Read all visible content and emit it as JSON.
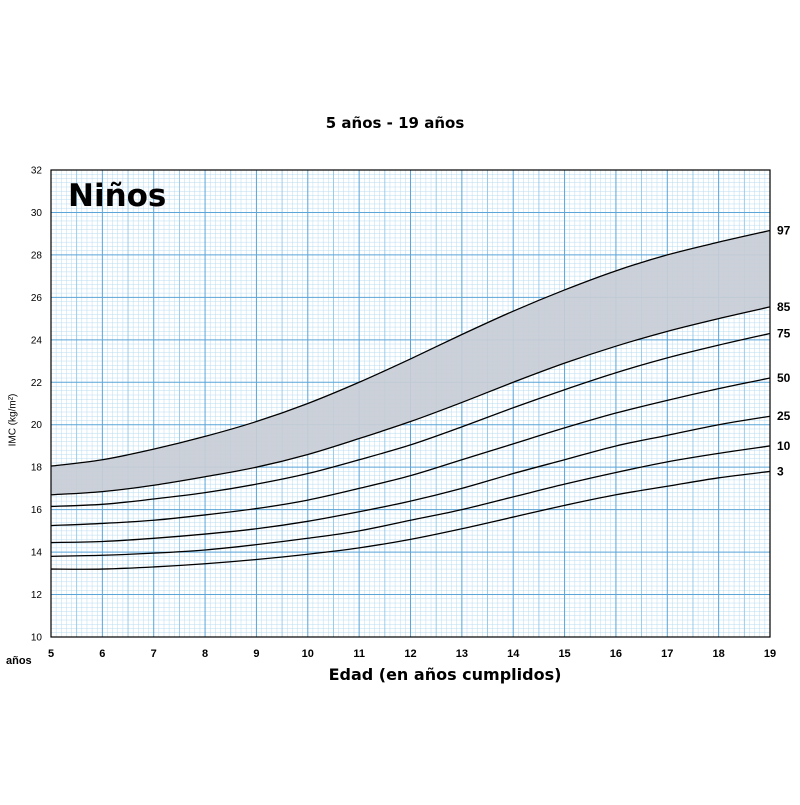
{
  "chart_data": {
    "type": "line",
    "title": "5 años - 19 años",
    "panel_label": "Niños",
    "xlabel": "Edad (en años cumplidos)",
    "ylabel": "IMC (kg/m²)",
    "x_unit_label": "años",
    "xlim": [
      5,
      19
    ],
    "ylim": [
      10,
      32
    ],
    "x_ticks": [
      5,
      6,
      7,
      8,
      9,
      10,
      11,
      12,
      13,
      14,
      15,
      16,
      17,
      18,
      19
    ],
    "y_ticks": [
      10,
      12,
      14,
      16,
      18,
      20,
      22,
      24,
      26,
      28,
      30,
      32
    ],
    "grid": true,
    "shaded_band": {
      "from_series": "85",
      "to_series": "97",
      "color": "#c8cdd6"
    },
    "series": [
      {
        "name": "3",
        "x": [
          5,
          6,
          7,
          8,
          9,
          10,
          11,
          12,
          13,
          14,
          15,
          16,
          17,
          18,
          19
        ],
        "values": [
          13.2,
          13.2,
          13.3,
          13.45,
          13.65,
          13.9,
          14.2,
          14.6,
          15.1,
          15.65,
          16.2,
          16.7,
          17.1,
          17.5,
          17.8
        ]
      },
      {
        "name": "10",
        "x": [
          5,
          6,
          7,
          8,
          9,
          10,
          11,
          12,
          13,
          14,
          15,
          16,
          17,
          18,
          19
        ],
        "values": [
          13.8,
          13.85,
          13.95,
          14.1,
          14.35,
          14.65,
          15.0,
          15.5,
          16.0,
          16.6,
          17.2,
          17.75,
          18.25,
          18.65,
          19.0
        ]
      },
      {
        "name": "25",
        "x": [
          5,
          6,
          7,
          8,
          9,
          10,
          11,
          12,
          13,
          14,
          15,
          16,
          17,
          18,
          19
        ],
        "values": [
          14.45,
          14.5,
          14.65,
          14.85,
          15.1,
          15.45,
          15.9,
          16.4,
          17.0,
          17.7,
          18.35,
          19.0,
          19.5,
          20.0,
          20.4
        ]
      },
      {
        "name": "50",
        "x": [
          5,
          6,
          7,
          8,
          9,
          10,
          11,
          12,
          13,
          14,
          15,
          16,
          17,
          18,
          19
        ],
        "values": [
          15.25,
          15.35,
          15.5,
          15.75,
          16.05,
          16.45,
          17.0,
          17.6,
          18.35,
          19.1,
          19.85,
          20.55,
          21.15,
          21.7,
          22.2
        ]
      },
      {
        "name": "75",
        "x": [
          5,
          6,
          7,
          8,
          9,
          10,
          11,
          12,
          13,
          14,
          15,
          16,
          17,
          18,
          19
        ],
        "values": [
          16.15,
          16.25,
          16.5,
          16.8,
          17.2,
          17.7,
          18.35,
          19.05,
          19.9,
          20.8,
          21.65,
          22.45,
          23.15,
          23.75,
          24.3
        ]
      },
      {
        "name": "85",
        "x": [
          5,
          6,
          7,
          8,
          9,
          10,
          11,
          12,
          13,
          14,
          15,
          16,
          17,
          18,
          19
        ],
        "values": [
          16.7,
          16.85,
          17.15,
          17.55,
          18.0,
          18.6,
          19.35,
          20.15,
          21.05,
          22.0,
          22.9,
          23.7,
          24.4,
          25.0,
          25.55
        ]
      },
      {
        "name": "97",
        "x": [
          5,
          6,
          7,
          8,
          9,
          10,
          11,
          12,
          13,
          14,
          15,
          16,
          17,
          18,
          19
        ],
        "values": [
          18.05,
          18.35,
          18.85,
          19.45,
          20.15,
          21.0,
          22.0,
          23.1,
          24.25,
          25.35,
          26.35,
          27.25,
          28.0,
          28.6,
          29.15
        ]
      }
    ]
  }
}
